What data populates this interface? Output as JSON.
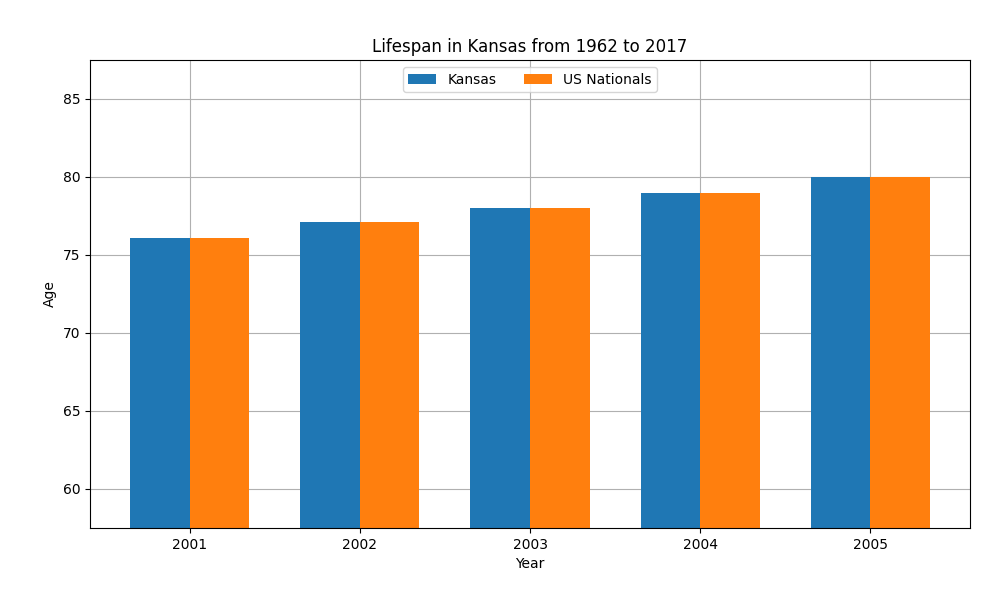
{
  "chart_data": {
    "type": "bar",
    "title": "Lifespan in Kansas from 1962 to 2017",
    "x_label": "Year",
    "y_label": "Age",
    "categories": [
      "2001",
      "2002",
      "2003",
      "2004",
      "2005"
    ],
    "series": [
      {
        "name": "Kansas",
        "values": [
          76.1,
          77.1,
          78.0,
          79.0,
          80.0
        ]
      },
      {
        "name": "US Nationals",
        "values": [
          76.1,
          77.1,
          78.0,
          79.0,
          80.0
        ]
      }
    ],
    "ylim": [
      57.5,
      87.5
    ],
    "yticks": [
      60,
      65,
      70,
      75,
      80,
      85
    ],
    "grid": true,
    "legend": "upper center"
  }
}
